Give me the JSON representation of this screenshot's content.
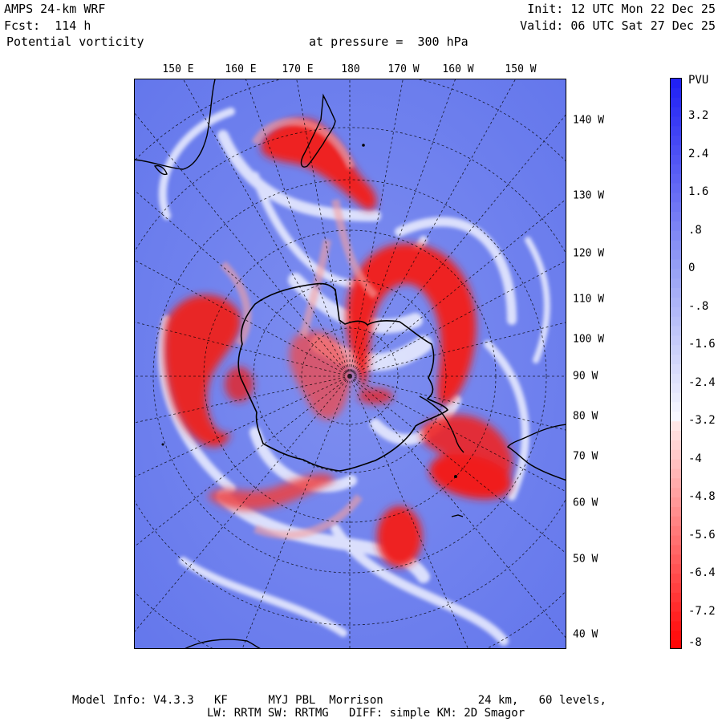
{
  "header": {
    "model_title": "AMPS 24-km WRF",
    "forecast": "Fcst:  114 h",
    "field_name": "Potential vorticity",
    "pressure_level": "at pressure =  300 hPa",
    "init_time": "Init: 12 UTC Mon 22 Dec 25",
    "valid_time": "Valid: 06 UTC Sat 27 Dec 25"
  },
  "map": {
    "projection": "polar stereographic, south pole",
    "top_longitude_labels": [
      "150 E",
      "160 E",
      "170 E",
      "180",
      "170 W",
      "160 W",
      "150 W"
    ],
    "right_longitude_labels": [
      "140 W",
      "130 W",
      "120 W",
      "110 W",
      "100 W",
      "90 W",
      "80 W",
      "70 W",
      "60 W",
      "50 W",
      "40 W"
    ],
    "colors": {
      "background_field": "#6b80ee",
      "negative_pv": "#ff1a1a",
      "near_zero": "#f2f2ff",
      "coastline": "#000000",
      "graticule": "#000000"
    }
  },
  "colorbar": {
    "units": "PVU",
    "labels": [
      "3.2",
      "2.4",
      "1.6",
      ".8",
      "0",
      "-.8",
      "-1.6",
      "-2.4",
      "-3.2",
      "-4",
      "-4.8",
      "-5.6",
      "-6.4",
      "-7.2",
      "-8"
    ],
    "range": [
      -8,
      4
    ]
  },
  "footer": {
    "line1": "Model Info: V4.3.3   KF      MYJ PBL  Morrison              24 km,   60 levels,",
    "line2": "LW: RRTM SW: RRTMG   DIFF: simple KM: 2D Smagor"
  }
}
